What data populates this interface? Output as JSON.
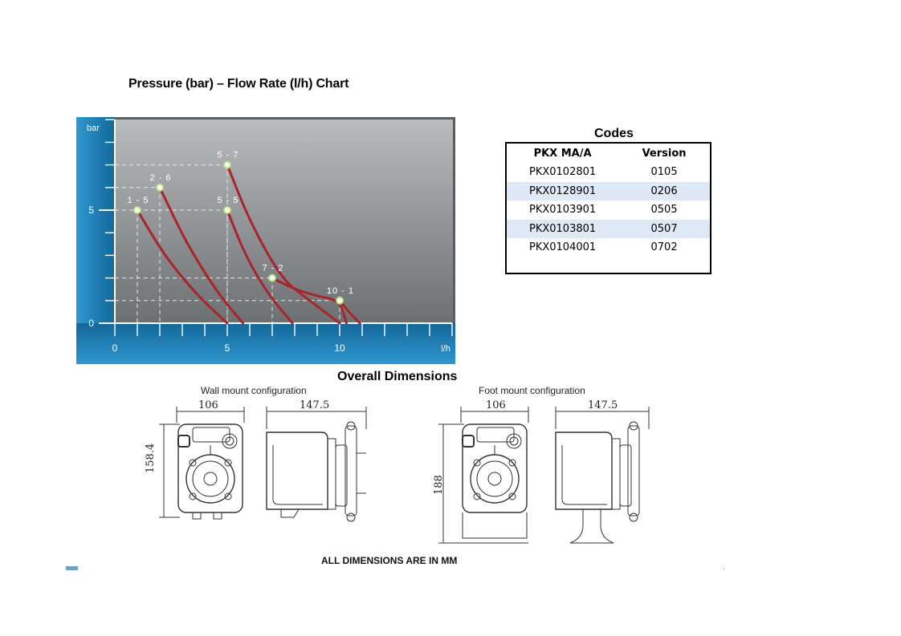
{
  "chart_title": "Pressure (bar) – Flow Rate (l/h) Chart",
  "chart_data": {
    "type": "line",
    "title": "Pressure (bar) – Flow Rate (l/h) Chart",
    "xlabel": "l/h",
    "ylabel": "bar",
    "xlim": [
      0,
      15
    ],
    "ylim": [
      0,
      9
    ],
    "x_ticks": [
      0,
      5,
      10
    ],
    "y_ticks": [
      0,
      5
    ],
    "series": [
      {
        "name": "1 - 5",
        "x": [
          1,
          2.2,
          3.6,
          5.0
        ],
        "y": [
          5,
          3,
          1.3,
          0
        ]
      },
      {
        "name": "2 - 6",
        "x": [
          2,
          3.2,
          4.6,
          5.7
        ],
        "y": [
          6,
          3.5,
          1.3,
          0
        ]
      },
      {
        "name": "5 - 5",
        "x": [
          5,
          5.8,
          6.8,
          7.9
        ],
        "y": [
          5,
          3,
          1.3,
          0
        ]
      },
      {
        "name": "5 - 7",
        "x": [
          5,
          6.0,
          7.4,
          8.4,
          9.6,
          10.0
        ],
        "y": [
          7,
          4.5,
          2,
          1.2,
          0.3,
          0
        ]
      },
      {
        "name": "7 - 2",
        "x": [
          7,
          8,
          9,
          10,
          10.3
        ],
        "y": [
          2,
          1.5,
          1.2,
          1.0,
          0
        ]
      },
      {
        "name": "10 - 1",
        "x": [
          10,
          10.4,
          10.9
        ],
        "y": [
          1,
          0.5,
          0
        ]
      }
    ],
    "points": [
      {
        "label": "1 - 5",
        "x": 1,
        "y": 5
      },
      {
        "label": "2 - 6",
        "x": 2,
        "y": 6
      },
      {
        "label": "5 - 5",
        "x": 5,
        "y": 5
      },
      {
        "label": "5 - 7",
        "x": 5,
        "y": 7
      },
      {
        "label": "7 - 2",
        "x": 7,
        "y": 2
      },
      {
        "label": "10 - 1",
        "x": 10,
        "y": 1
      }
    ],
    "grid": true,
    "colors": {
      "panel": "#8f9295",
      "axis_band": "#1d7fb6",
      "curve": "#a8262a",
      "marker": "#b6e37a"
    }
  },
  "codes": {
    "title": "Codes",
    "headers": [
      "PKX MA/A",
      "Version"
    ],
    "rows": [
      [
        "PKX0102801",
        "0105"
      ],
      [
        "PKX0128901",
        "0206"
      ],
      [
        "PKX0103901",
        "0505"
      ],
      [
        "PKX0103801",
        "0507"
      ],
      [
        "PKX0104001",
        "0702"
      ]
    ]
  },
  "dimensions": {
    "title": "Overall Dimensions",
    "wall_label": "Wall mount configuration",
    "foot_label": "Foot mount configuration",
    "wall_width": "106",
    "wall_depth": "147.5",
    "wall_height": "158.4",
    "foot_width": "106",
    "foot_depth": "147.5",
    "foot_height": "188",
    "note": "ALL DIMENSIONS ARE IN MM"
  }
}
